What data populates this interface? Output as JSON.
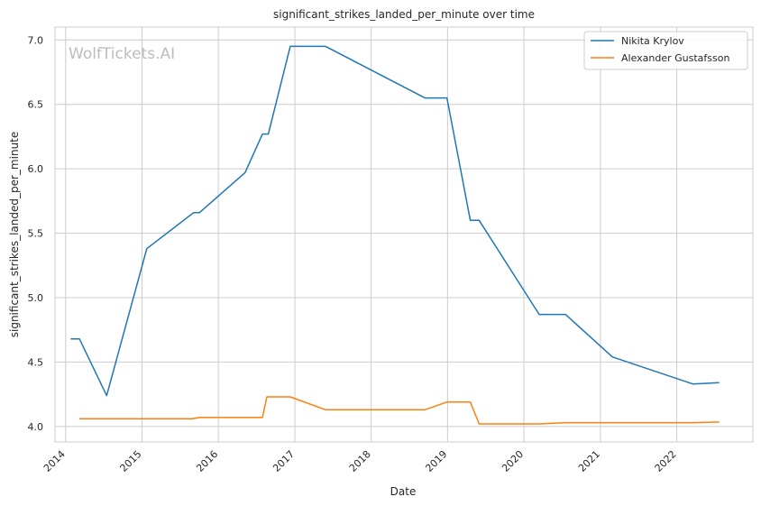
{
  "chart_data": {
    "type": "line",
    "title": "significant_strikes_landed_per_minute over time",
    "xlabel": "Date",
    "ylabel": "significant_strikes_landed_per_minute",
    "watermark": "WolfTickets.AI",
    "xlim": [
      "2013-11-11",
      "2022-12-31"
    ],
    "ylim": [
      3.88,
      7.1
    ],
    "x_ticks": [
      "2014",
      "2015",
      "2016",
      "2017",
      "2018",
      "2019",
      "2020",
      "2021",
      "2022"
    ],
    "y_ticks": [
      "4.0",
      "4.5",
      "5.0",
      "5.5",
      "6.0",
      "6.5",
      "7.0"
    ],
    "grid": true,
    "legend_position": "top-right",
    "colors": {
      "Nikita Krylov": "#1f77b4",
      "Alexander Gustafsson": "#ff7f0e"
    },
    "series": [
      {
        "name": "Nikita Krylov",
        "color": "#1f77b4",
        "points": [
          {
            "x": "2014-01-25",
            "y": 4.68
          },
          {
            "x": "2014-03-08",
            "y": 4.68
          },
          {
            "x": "2014-07-16",
            "y": 4.24
          },
          {
            "x": "2015-01-24",
            "y": 5.38
          },
          {
            "x": "2015-09-05",
            "y": 5.66
          },
          {
            "x": "2015-10-03",
            "y": 5.66
          },
          {
            "x": "2016-05-08",
            "y": 5.97
          },
          {
            "x": "2016-07-30",
            "y": 6.27
          },
          {
            "x": "2016-08-27",
            "y": 6.27
          },
          {
            "x": "2016-12-10",
            "y": 6.95
          },
          {
            "x": "2017-05-28",
            "y": 6.95
          },
          {
            "x": "2018-09-15",
            "y": 6.55
          },
          {
            "x": "2018-12-29",
            "y": 6.55
          },
          {
            "x": "2019-04-20",
            "y": 5.6
          },
          {
            "x": "2019-06-01",
            "y": 5.6
          },
          {
            "x": "2020-03-14",
            "y": 4.87
          },
          {
            "x": "2020-07-18",
            "y": 4.87
          },
          {
            "x": "2021-02-27",
            "y": 4.54
          },
          {
            "x": "2022-03-19",
            "y": 4.33
          },
          {
            "x": "2022-07-23",
            "y": 4.34
          }
        ]
      },
      {
        "name": "Alexander Gustafsson",
        "color": "#ff7f0e",
        "points": [
          {
            "x": "2014-03-08",
            "y": 4.06
          },
          {
            "x": "2015-08-29",
            "y": 4.06
          },
          {
            "x": "2015-10-03",
            "y": 4.07
          },
          {
            "x": "2016-07-30",
            "y": 4.07
          },
          {
            "x": "2016-08-20",
            "y": 4.23
          },
          {
            "x": "2016-12-10",
            "y": 4.23
          },
          {
            "x": "2017-05-28",
            "y": 4.13
          },
          {
            "x": "2018-09-15",
            "y": 4.13
          },
          {
            "x": "2018-12-29",
            "y": 4.19
          },
          {
            "x": "2019-04-20",
            "y": 4.19
          },
          {
            "x": "2019-06-01",
            "y": 4.02
          },
          {
            "x": "2020-03-14",
            "y": 4.02
          },
          {
            "x": "2020-07-18",
            "y": 4.03
          },
          {
            "x": "2022-03-19",
            "y": 4.03
          },
          {
            "x": "2022-07-23",
            "y": 4.035
          }
        ]
      }
    ]
  }
}
